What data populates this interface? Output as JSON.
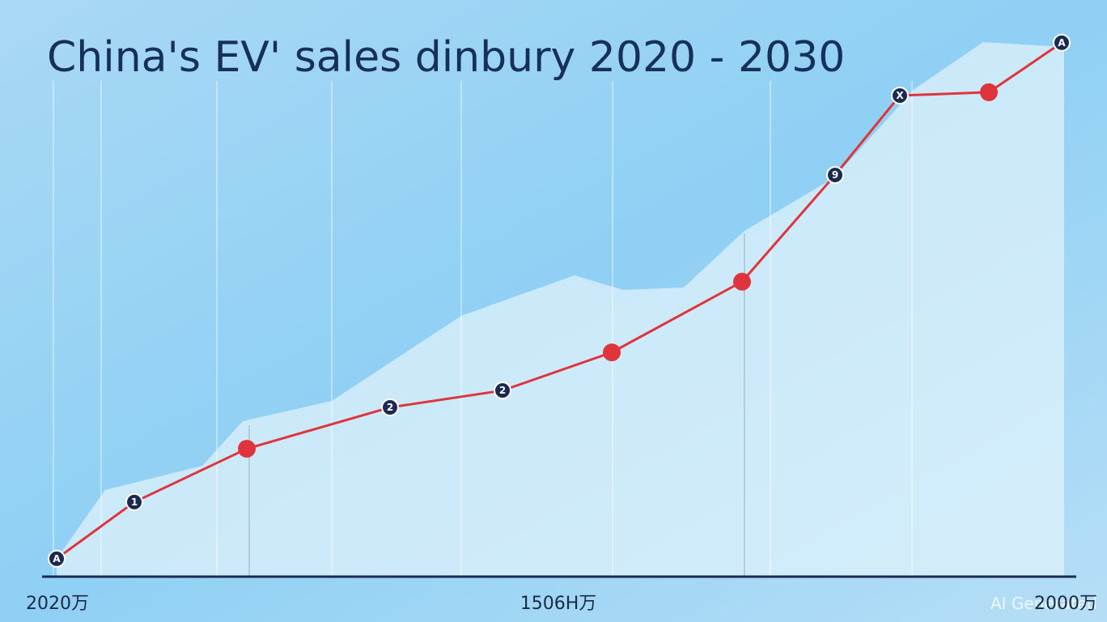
{
  "chart_data": {
    "type": "line",
    "title": "China's EV' sales dinbury 2020 - 2030",
    "categories": [
      "2020万",
      null,
      null,
      null,
      null,
      "1506H万",
      null,
      null,
      null,
      null,
      "2000万"
    ],
    "series": [
      {
        "color": "#e0343c",
        "values": [
          3.3,
          13.7,
          23.5,
          31.1,
          34.2,
          41.2,
          54.2,
          73.8,
          88.4,
          89.0,
          98.1
        ],
        "point_labels": [
          "A",
          "1",
          null,
          "2",
          "2",
          null,
          null,
          "9",
          "X",
          null,
          "A"
        ]
      }
    ],
    "ylim": [
      0,
      100
    ],
    "watermark": "AI Generated"
  }
}
